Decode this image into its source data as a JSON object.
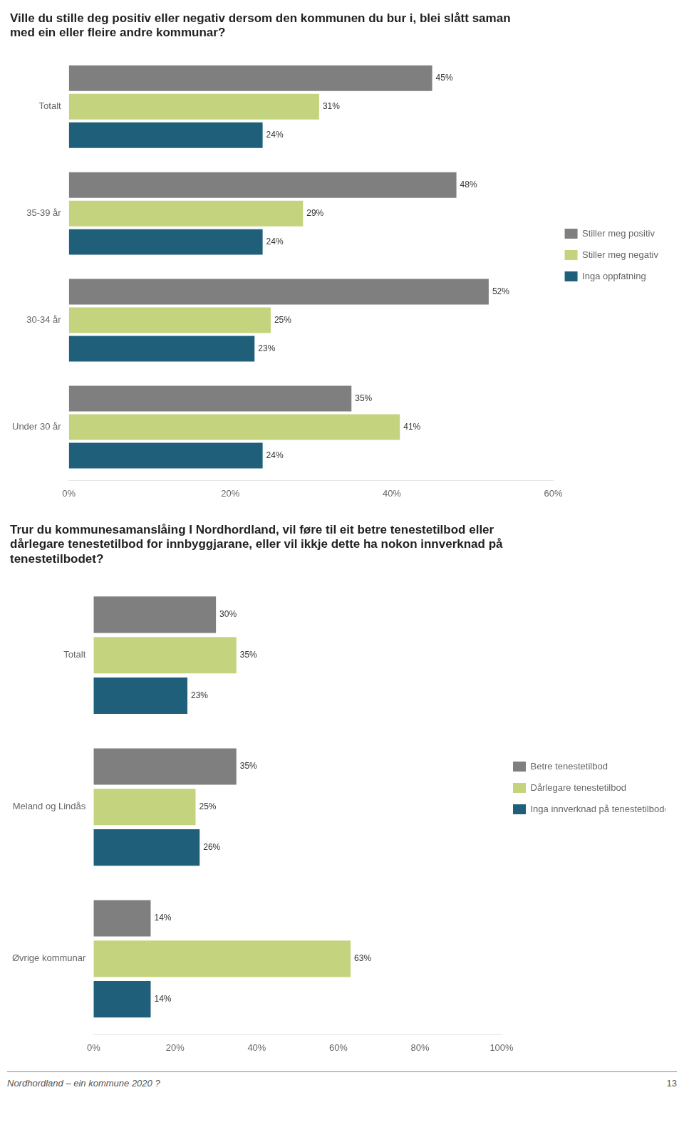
{
  "chart_data": [
    {
      "type": "bar",
      "orientation": "horizontal",
      "title": "Ville du stille deg positiv eller negativ dersom den kommunen du bur i, blei slått saman\nmed ein eller fleire andre kommunar?",
      "categories": [
        "Totalt",
        "35-39 år",
        "30-34 år",
        "Under 30 år"
      ],
      "series": [
        {
          "name": "Stiller meg positiv",
          "color": "#7f7f7f",
          "values": [
            45,
            48,
            52,
            35
          ],
          "value_labels": [
            "45%",
            "48%",
            "52%",
            "35%"
          ]
        },
        {
          "name": "Stiller meg negativ",
          "color": "#c4d47e",
          "values": [
            31,
            29,
            25,
            41
          ],
          "value_labels": [
            "31%",
            "29%",
            "25%",
            "41%"
          ]
        },
        {
          "name": "Inga oppfatning",
          "color": "#1f5f7a",
          "values": [
            24,
            24,
            23,
            24
          ],
          "value_labels": [
            "24%",
            "24%",
            "23%",
            "24%"
          ]
        }
      ],
      "xlim": [
        0,
        60
      ],
      "xticks": [
        {
          "value": 0,
          "label": "0%"
        },
        {
          "value": 20,
          "label": "20%"
        },
        {
          "value": 40,
          "label": "40%"
        },
        {
          "value": 60,
          "label": "60%"
        }
      ],
      "data_labels": true,
      "legend": "right",
      "grid": false
    },
    {
      "type": "bar",
      "orientation": "horizontal",
      "title": "Trur du kommunesamanslåing I Nordhordland, vil føre til eit betre tenestetilbod eller\ndårlegare tenestetilbod for innbyggjarane, eller vil ikkje dette ha nokon innverknad på\ntenestetilbodet?",
      "categories": [
        "Totalt",
        "Meland og Lindås",
        "Øvrige kommunar"
      ],
      "series": [
        {
          "name": "Betre tenestetilbod",
          "color": "#7f7f7f",
          "values": [
            30,
            35,
            14
          ],
          "value_labels": [
            "30%",
            "35%",
            "14%"
          ]
        },
        {
          "name": "Dårlegare tenestetilbod",
          "color": "#c4d47e",
          "values": [
            35,
            25,
            63
          ],
          "value_labels": [
            "35%",
            "25%",
            "63%"
          ]
        },
        {
          "name": "Inga innverknad på tenestetilbodet",
          "color": "#1f5f7a",
          "values": [
            23,
            26,
            14
          ],
          "value_labels": [
            "23%",
            "26%",
            "14%"
          ]
        }
      ],
      "xlim": [
        0,
        100
      ],
      "xticks": [
        {
          "value": 0,
          "label": "0%"
        },
        {
          "value": 20,
          "label": "20%"
        },
        {
          "value": 40,
          "label": "40%"
        },
        {
          "value": 60,
          "label": "60%"
        },
        {
          "value": 80,
          "label": "80%"
        },
        {
          "value": 100,
          "label": "100%"
        }
      ],
      "data_labels": true,
      "legend": "right",
      "grid": false,
      "annotations": [
        "Nordhordland – ein kommune 2020 ?",
        "13"
      ]
    }
  ]
}
